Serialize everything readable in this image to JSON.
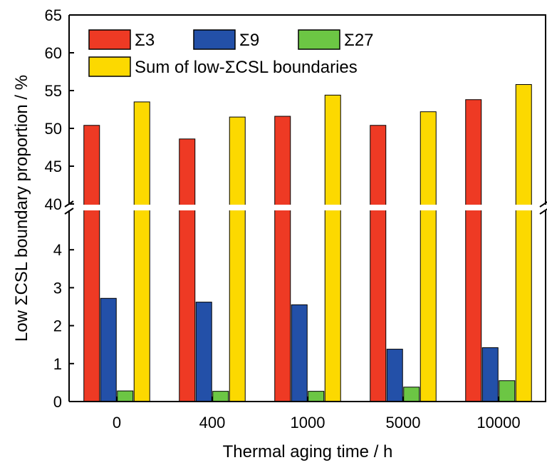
{
  "chart_data": {
    "type": "bar",
    "xlabel": "Thermal aging time / h",
    "ylabel": "Low ΣCSL boundary proportion / %",
    "categories": [
      "0",
      "400",
      "1000",
      "5000",
      "10000"
    ],
    "axis_break": {
      "lower_range": [
        0,
        5
      ],
      "upper_range": [
        40,
        65
      ]
    },
    "lower_ticks": [
      0,
      1,
      2,
      3,
      4
    ],
    "upper_ticks": [
      40,
      45,
      50,
      55,
      60,
      65
    ],
    "legend_position": "top",
    "grid": false,
    "series": [
      {
        "name": "Σ3",
        "color": "#ee3a24",
        "values": [
          50.4,
          48.6,
          51.6,
          50.4,
          53.8
        ]
      },
      {
        "name": "Σ9",
        "color": "#2350a8",
        "values": [
          2.72,
          2.62,
          2.55,
          1.38,
          1.42
        ]
      },
      {
        "name": "Σ27",
        "color": "#6cc644",
        "values": [
          0.28,
          0.27,
          0.27,
          0.38,
          0.55
        ]
      },
      {
        "name": "Sum of low-ΣCSL boundaries",
        "color": "#fcd900",
        "values": [
          53.5,
          51.5,
          54.4,
          52.2,
          55.8
        ]
      }
    ]
  }
}
